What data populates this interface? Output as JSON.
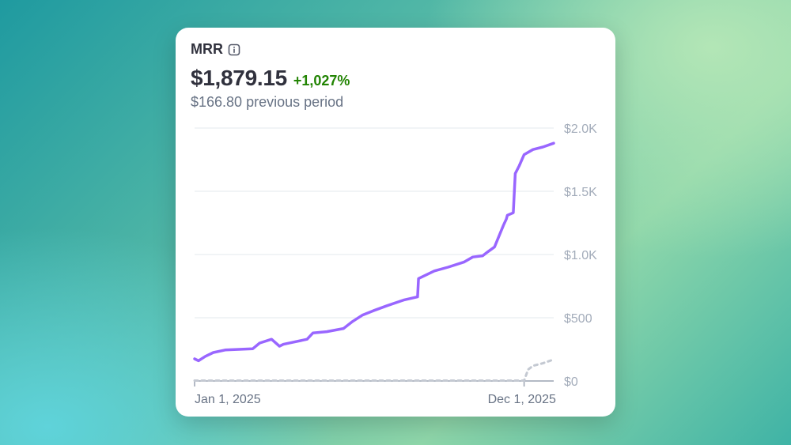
{
  "card": {
    "title": "MRR",
    "info_icon": "info-icon",
    "value": "$1,879.15",
    "change": "+1,027%",
    "previous": "$166.80 previous period"
  },
  "colors": {
    "current": "#9966ff",
    "previous": "#c4c9d2",
    "grid": "#e3e8ee",
    "tick_text": "#a3acba",
    "positive": "#228403"
  },
  "chart_data": {
    "type": "line",
    "title": "MRR",
    "xlabel": "",
    "ylabel": "",
    "x_tick_labels": [
      "Jan 1, 2025",
      "Dec 1, 2025"
    ],
    "y_tick_labels": [
      "$0",
      "$500",
      "$1.0K",
      "$1.5K",
      "$2.0K"
    ],
    "y_ticks": [
      0,
      500,
      1000,
      1500,
      2000
    ],
    "ylim": [
      0,
      2000
    ],
    "xlim": [
      "2025-01-01",
      "2025-12-31"
    ],
    "grid": true,
    "legend": "none",
    "series": [
      {
        "style": "solid",
        "x": [
          "2025-01-01",
          "2025-01-05",
          "2025-01-12",
          "2025-01-20",
          "2025-02-01",
          "2025-02-15",
          "2025-03-01",
          "2025-03-08",
          "2025-03-20",
          "2025-03-28",
          "2025-04-01",
          "2025-04-10",
          "2025-04-25",
          "2025-05-01",
          "2025-05-15",
          "2025-06-01",
          "2025-06-10",
          "2025-06-20",
          "2025-07-01",
          "2025-07-15",
          "2025-08-01",
          "2025-08-15",
          "2025-08-16",
          "2025-09-01",
          "2025-09-15",
          "2025-10-01",
          "2025-10-10",
          "2025-10-20",
          "2025-10-25",
          "2025-11-01",
          "2025-11-10",
          "2025-11-13",
          "2025-11-14",
          "2025-11-20",
          "2025-11-22",
          "2025-11-26",
          "2025-12-01",
          "2025-12-10",
          "2025-12-20",
          "2025-12-31"
        ],
        "values": [
          175,
          160,
          195,
          225,
          245,
          250,
          255,
          300,
          330,
          275,
          290,
          305,
          330,
          380,
          390,
          415,
          470,
          520,
          555,
          595,
          640,
          665,
          810,
          870,
          900,
          940,
          980,
          990,
          1020,
          1060,
          1230,
          1280,
          1310,
          1330,
          1640,
          1700,
          1790,
          1830,
          1850,
          1880
        ]
      },
      {
        "style": "dashed",
        "x": [
          "2025-01-01",
          "2025-02-01",
          "2025-03-01",
          "2025-04-01",
          "2025-05-01",
          "2025-06-01",
          "2025-07-01",
          "2025-08-01",
          "2025-09-01",
          "2025-10-01",
          "2025-11-01",
          "2025-12-01",
          "2025-12-05",
          "2025-12-10",
          "2025-12-20",
          "2025-12-31"
        ],
        "values": [
          3,
          3,
          3,
          3,
          3,
          3,
          3,
          3,
          3,
          3,
          3,
          3,
          90,
          120,
          140,
          170
        ]
      }
    ]
  }
}
